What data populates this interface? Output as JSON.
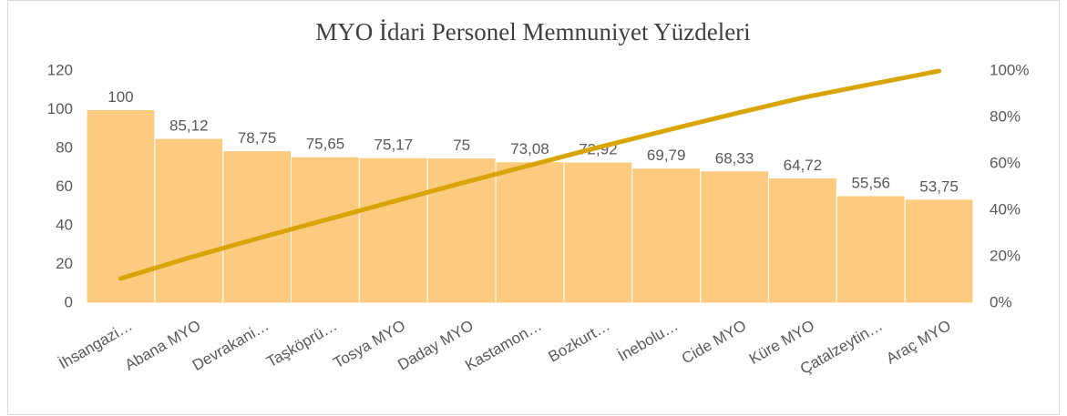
{
  "chart_data": {
    "type": "pareto",
    "title": "MYO İdari Personel Memnuniyet  Yüzdeleri",
    "categories": [
      "İhsangazi…",
      "Abana MYO",
      "Devrakani…",
      "Taşköprü…",
      "Tosya MYO",
      "Daday MYO",
      "Kastamon…",
      "Bozkurt…",
      "İnebolu…",
      "Cide MYO",
      "Küre MYO",
      "Çatalzeytin…",
      "Araç MYO"
    ],
    "series": [
      {
        "color": "#fdcb80",
        "values": [
          100,
          85.12,
          78.75,
          75.65,
          75.17,
          75,
          73.08,
          72.92,
          69.79,
          68.33,
          64.72,
          55.56,
          53.75
        ],
        "value_labels": [
          "100",
          "85,12",
          "78,75",
          "75,65",
          "75,17",
          "75",
          "73,08",
          "72,92",
          "69,79",
          "68,33",
          "64,72",
          "55,56",
          "53,75"
        ]
      },
      {
        "axis": "y2",
        "color": "#d9a406",
        "values": [
          10.6,
          19.5,
          27.8,
          35.8,
          43.8,
          51.7,
          59.4,
          67.1,
          74.4,
          81.6,
          88.5,
          94.3,
          100
        ]
      }
    ],
    "ylim": [
      0,
      120
    ],
    "yticks": [
      0,
      20,
      40,
      60,
      80,
      100,
      120
    ],
    "y2lim": [
      0,
      100
    ],
    "y2ticks": [
      {
        "value": 0,
        "label": "0%"
      },
      {
        "value": 20,
        "label": "20%"
      },
      {
        "value": 40,
        "label": "40%"
      },
      {
        "value": 60,
        "label": "60%"
      },
      {
        "value": 80,
        "label": "80%"
      },
      {
        "value": 100,
        "label": "100%"
      }
    ]
  }
}
